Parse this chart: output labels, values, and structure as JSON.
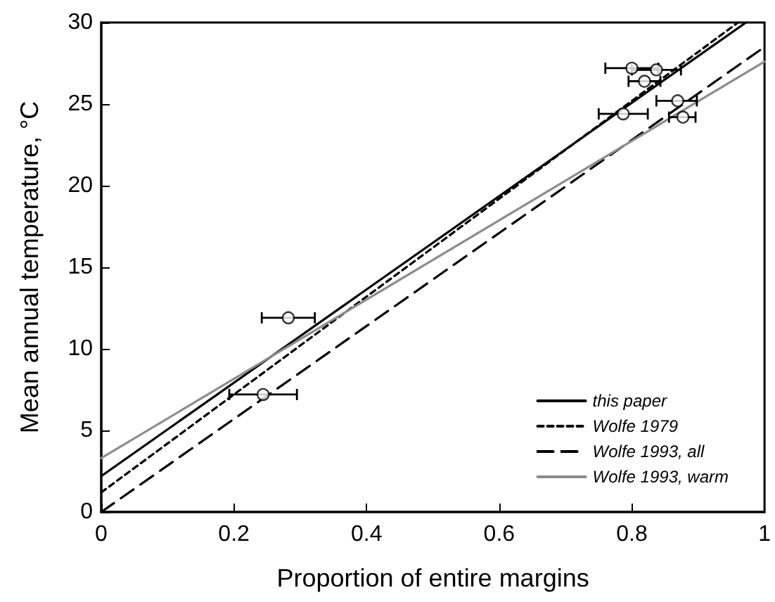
{
  "chart_data": {
    "type": "line",
    "xlabel": "Proportion of entire margins",
    "ylabel": "Mean annual temperature, °C",
    "xlim": [
      0,
      1
    ],
    "xticks": [
      0,
      0.2,
      0.4,
      0.6,
      0.8,
      1
    ],
    "ylim": [
      0,
      30
    ],
    "yticks": [
      0,
      5,
      10,
      15,
      20,
      25,
      30
    ],
    "grid": false,
    "legend": "bottom right",
    "marker": "none",
    "series": [
      {
        "name": "this paper",
        "color": "#000000",
        "line_style": "solid",
        "x": [
          0,
          0.972
        ],
        "values": [
          2.2,
          30
        ]
      },
      {
        "name": "Wolfe 1979",
        "color": "#000000",
        "line_style": "dotted",
        "x": [
          0,
          0.96
        ],
        "values": [
          1.2,
          30
        ]
      },
      {
        "name": "Wolfe 1993, all",
        "color": "#000000",
        "line_style": "dashed",
        "x": [
          0,
          1
        ],
        "values": [
          0,
          28.5
        ]
      },
      {
        "name": "Wolfe 1993, warm",
        "color": "#8c8c8c",
        "line_style": "solid",
        "x": [
          0,
          1
        ],
        "values": [
          3.3,
          27.6
        ]
      },
      {
        "type": "scatter",
        "color": "#000000",
        "marker": "circle",
        "x": [
          0.282,
          0.244,
          0.8,
          0.837,
          0.819,
          0.787,
          0.869,
          0.877
        ],
        "values": [
          11.9,
          7.2,
          27.2,
          27.1,
          26.4,
          24.4,
          25.2,
          24.2
        ],
        "xerrors": [
          [
            0.242,
            0.322
          ],
          [
            0.193,
            0.295
          ],
          [
            0.76,
            0.84
          ],
          [
            0.8,
            0.874
          ],
          [
            0.795,
            0.843
          ],
          [
            0.75,
            0.824
          ],
          [
            0.837,
            0.898
          ],
          [
            0.856,
            0.896
          ]
        ]
      }
    ]
  }
}
